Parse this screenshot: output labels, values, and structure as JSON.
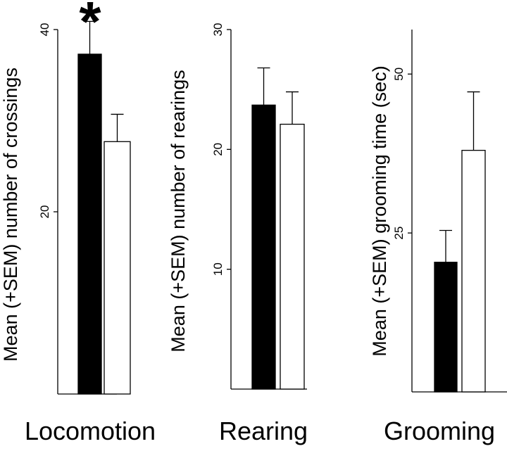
{
  "colors": {
    "group_a": "#000000",
    "group_b": "#ffffff",
    "outline": "#000000"
  },
  "chart_data": [
    {
      "type": "bar",
      "xlabel": "Locomotion",
      "ylabel": "Mean (+SEM) number of crossings",
      "ylim": [
        0,
        40
      ],
      "yticks": [
        "20",
        "40"
      ],
      "yticks_values": [
        20,
        40
      ],
      "grid": false,
      "series": [
        {
          "values": [
            37.3
          ],
          "error": [
            3.6
          ],
          "color": "#000000"
        },
        {
          "values": [
            27.7
          ],
          "error": [
            3.0
          ],
          "color": "#ffffff"
        }
      ],
      "annotation": "*"
    },
    {
      "type": "bar",
      "xlabel": "Rearing",
      "ylabel": "Mean (+SEM) number of rearings",
      "ylim": [
        0,
        30
      ],
      "yticks": [
        "10",
        "20",
        "30"
      ],
      "yticks_values": [
        10,
        20,
        30
      ],
      "grid": false,
      "series": [
        {
          "values": [
            23.7
          ],
          "error": [
            3.1
          ],
          "color": "#000000"
        },
        {
          "values": [
            22.1
          ],
          "error": [
            2.7
          ],
          "color": "#ffffff"
        }
      ]
    },
    {
      "type": "bar",
      "xlabel": "Grooming",
      "ylabel": "Mean (+SEM) grooming time (sec)",
      "ylim": [
        0,
        57
      ],
      "yticks": [
        "25",
        "50"
      ],
      "yticks_values": [
        25,
        50
      ],
      "grid": false,
      "series": [
        {
          "values": [
            20.4
          ],
          "error": [
            5.0
          ],
          "color": "#000000"
        },
        {
          "values": [
            38.0
          ],
          "error": [
            9.2
          ],
          "color": "#ffffff"
        }
      ]
    }
  ]
}
